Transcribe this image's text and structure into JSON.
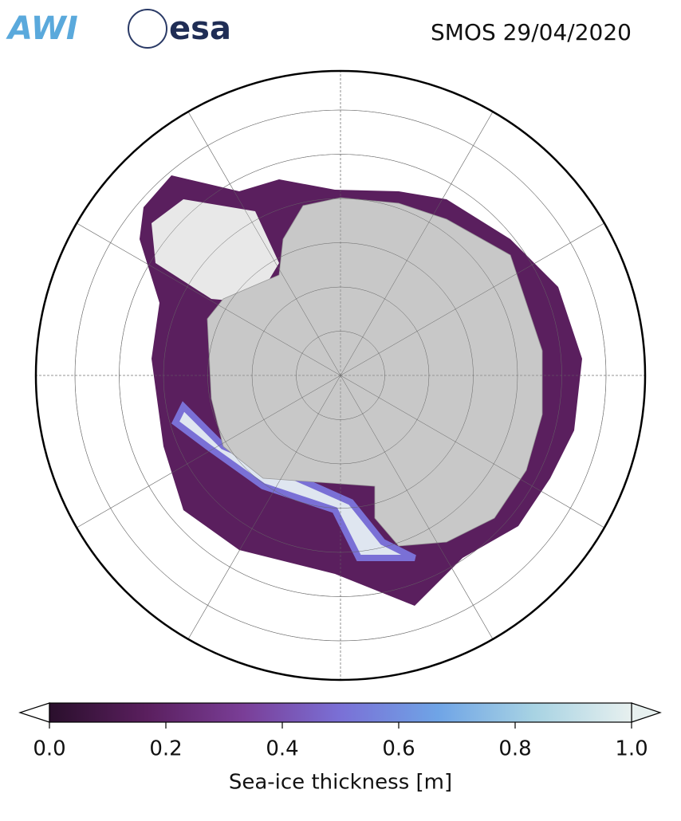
{
  "header": {
    "logos": [
      "AWI",
      "esa"
    ],
    "title": "SMOS 29/04/2020"
  },
  "colorbar": {
    "label": "Sea-ice thickness [m]",
    "lim": [
      0,
      1
    ],
    "ticks": [
      {
        "value": 0,
        "label": "0.0"
      },
      {
        "value": 0.2,
        "label": "0.2"
      },
      {
        "value": 0.4,
        "label": "0.4"
      },
      {
        "value": 0.6,
        "label": "0.6"
      },
      {
        "value": 0.8,
        "label": "0.8"
      },
      {
        "value": 1,
        "label": "1.0"
      }
    ],
    "colors": [
      "#2a0f2c",
      "#5a1f5e",
      "#7a3e97",
      "#7a70d6",
      "#6fa4e6",
      "#a8d3e3",
      "#e7f0ef"
    ]
  }
}
